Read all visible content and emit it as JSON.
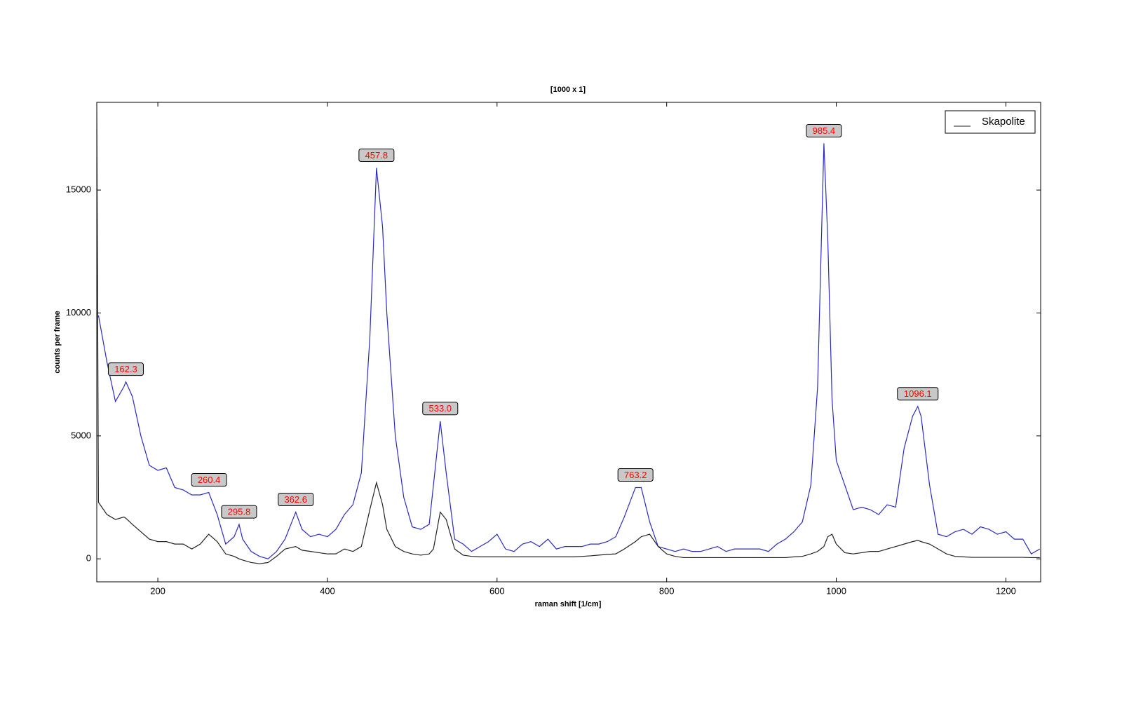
{
  "chart_data": {
    "type": "line",
    "title": "[1000 x 1]",
    "x_label": "raman shift [1/cm]",
    "y_label": "counts per frame",
    "x": [
      128,
      130,
      140,
      150,
      160,
      162.3,
      170,
      180,
      190,
      200,
      210,
      220,
      230,
      240,
      250,
      260,
      270,
      280,
      290,
      295.8,
      300,
      310,
      320,
      330,
      340,
      350,
      362.6,
      370,
      380,
      390,
      400,
      410,
      420,
      430,
      440,
      450,
      457.8,
      465,
      470,
      480,
      490,
      500,
      510,
      520,
      525,
      533,
      540,
      550,
      560,
      570,
      580,
      590,
      600,
      610,
      620,
      630,
      640,
      650,
      660,
      670,
      680,
      690,
      700,
      710,
      720,
      730,
      740,
      750,
      763.2,
      770,
      780,
      790,
      800,
      810,
      820,
      830,
      840,
      850,
      860,
      870,
      880,
      890,
      900,
      910,
      920,
      930,
      940,
      950,
      960,
      970,
      978,
      985.4,
      990,
      995,
      1000,
      1010,
      1020,
      1030,
      1040,
      1050,
      1060,
      1070,
      1080,
      1090,
      1096.1,
      1100,
      1110,
      1120,
      1130,
      1140,
      1150,
      1160,
      1170,
      1180,
      1190,
      1200,
      1210,
      1220,
      1230,
      1240
    ],
    "series": [
      {
        "color": "#2a2ac4",
        "values": [
          null,
          9900,
          8000,
          6400,
          7000,
          7200,
          6600,
          5000,
          3800,
          3600,
          3700,
          2900,
          2800,
          2600,
          2600,
          2700,
          1800,
          600,
          900,
          1400,
          800,
          300,
          100,
          0,
          300,
          800,
          1900,
          1200,
          900,
          1000,
          900,
          1200,
          1800,
          2200,
          3500,
          9000,
          15900,
          13500,
          10000,
          5000,
          2500,
          1300,
          1200,
          1400,
          3000,
          5600,
          3500,
          800,
          600,
          300,
          500,
          700,
          1000,
          400,
          300,
          600,
          700,
          500,
          800,
          400,
          500,
          500,
          500,
          600,
          600,
          700,
          900,
          1700,
          2900,
          2900,
          1500,
          500,
          400,
          300,
          400,
          300,
          300,
          400,
          500,
          300,
          400,
          400,
          400,
          400,
          300,
          600,
          800,
          1100,
          1500,
          3000,
          7000,
          16900,
          13000,
          6500,
          4000,
          3000,
          2000,
          2100,
          2000,
          1800,
          2200,
          2100,
          4500,
          5800,
          6200,
          5800,
          3000,
          1000,
          900,
          1100,
          1200,
          1000,
          1300,
          1200,
          1000,
          1100,
          800,
          800,
          200,
          400
        ]
      },
      {
        "name": "Skapolite",
        "color": "#222222",
        "values": [
          18500,
          2300,
          1800,
          1600,
          1700,
          1650,
          1400,
          1100,
          800,
          700,
          700,
          600,
          600,
          400,
          600,
          1000,
          700,
          200,
          100,
          0,
          -50,
          -150,
          -200,
          -150,
          100,
          400,
          500,
          350,
          300,
          250,
          200,
          200,
          400,
          300,
          500,
          2000,
          3100,
          2200,
          1200,
          500,
          300,
          200,
          150,
          200,
          400,
          1900,
          1600,
          400,
          150,
          100,
          80,
          80,
          80,
          80,
          80,
          80,
          80,
          80,
          80,
          80,
          80,
          80,
          100,
          120,
          150,
          180,
          200,
          400,
          700,
          900,
          1000,
          500,
          200,
          100,
          50,
          50,
          50,
          50,
          50,
          50,
          50,
          50,
          50,
          50,
          50,
          50,
          50,
          80,
          100,
          200,
          300,
          500,
          900,
          1000,
          600,
          250,
          200,
          250,
          300,
          300,
          400,
          500,
          600,
          700,
          750,
          700,
          600,
          400,
          200,
          100,
          80,
          60,
          60,
          60,
          60,
          60,
          60,
          60,
          50,
          50
        ]
      }
    ],
    "peaks": {
      "x": [
        162.3,
        260.4,
        295.8,
        362.6,
        457.8,
        533,
        763.2,
        985.4,
        1096.1
      ],
      "y": [
        7200,
        2700,
        1400,
        1900,
        15900,
        5600,
        2900,
        16900,
        6200
      ],
      "labels": [
        "162.3",
        "260.4",
        "295.8",
        "362.6",
        "457.8",
        "533.0",
        "763.2",
        "985.4",
        "1096.1"
      ],
      "color": "#ff0000"
    },
    "xlim": [
      128,
      1241
    ],
    "ylim": [
      -936,
      18567
    ],
    "xticks": [
      200,
      400,
      600,
      800,
      1000,
      1200
    ],
    "yticks": [
      0,
      5000,
      10000,
      15000
    ],
    "grid": false,
    "legend": "top-right"
  }
}
